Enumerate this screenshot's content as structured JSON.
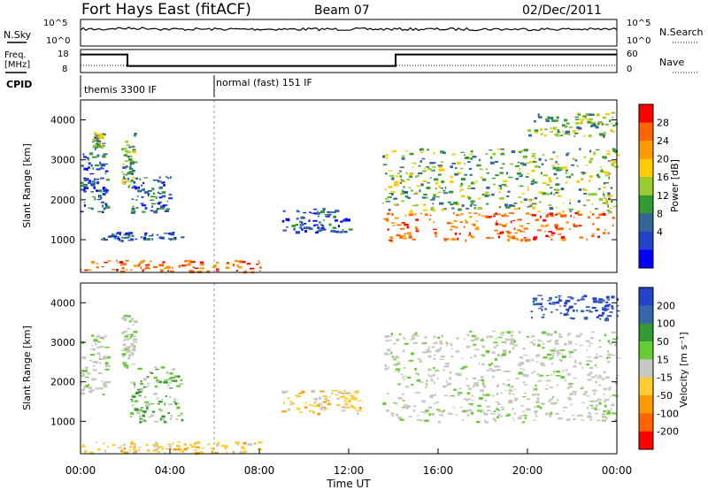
{
  "header": {
    "station": "Fort Hays East (fitACF)",
    "beam": "Beam 07",
    "date": "02/Dec/2011"
  },
  "noise_panel": {
    "left_label": "N.Sky",
    "right_label": "N.Search",
    "left_ticks": [
      "10^5",
      "10^0"
    ],
    "right_ticks": [
      "10^5",
      "10^0"
    ]
  },
  "freq_panel": {
    "left_label_line1": "Freq.",
    "left_label_line2": "[MHz]",
    "left_ticks": [
      "18",
      "8"
    ],
    "right_label": "Nave",
    "right_ticks": [
      "60",
      "0"
    ],
    "freq_steps": [
      {
        "start_hour": 0,
        "end_hour": 2.1,
        "mhz": 17
      },
      {
        "start_hour": 2.1,
        "end_hour": 14.1,
        "mhz": 10
      },
      {
        "start_hour": 14.1,
        "end_hour": 24,
        "mhz": 17
      }
    ]
  },
  "cpid_panel": {
    "label": "CPID",
    "segments": [
      {
        "start_hour": 0,
        "text": "themis 3300 IF"
      },
      {
        "start_hour": 6,
        "text": "normal (fast) 151 IF"
      }
    ]
  },
  "chart_data": [
    {
      "type": "heatmap",
      "name": "power",
      "ylabel": "Slant Range [km]",
      "ylim": [
        180,
        4500
      ],
      "yticks": [
        1000,
        2000,
        3000,
        4000
      ],
      "xlim": [
        0,
        24
      ],
      "colorbar": {
        "label": "Power [dB]",
        "ticks": [
          "28",
          "24",
          "20",
          "16",
          "12",
          "8",
          "4"
        ],
        "colors": [
          "#ff0000",
          "#ff6600",
          "#ff9900",
          "#ffcc00",
          "#99cc33",
          "#339933",
          "#336699",
          "#2244cc",
          "#0000ff"
        ]
      },
      "regions": [
        {
          "t0": 0.0,
          "t1": 1.2,
          "r0": 1700,
          "r1": 3200,
          "level": "low"
        },
        {
          "t0": 0.5,
          "t1": 1.0,
          "r0": 3300,
          "r1": 3700,
          "level": "mid"
        },
        {
          "t0": 1.8,
          "t1": 2.4,
          "r0": 2300,
          "r1": 3700,
          "level": "mid"
        },
        {
          "t0": 0.8,
          "t1": 4.5,
          "r0": 1000,
          "r1": 1200,
          "level": "low"
        },
        {
          "t0": 2.2,
          "t1": 4.0,
          "r0": 1700,
          "r1": 2600,
          "level": "low"
        },
        {
          "t0": 0.0,
          "t1": 8.0,
          "r0": 200,
          "r1": 500,
          "level": "high"
        },
        {
          "t0": 9.0,
          "t1": 12.0,
          "r0": 1200,
          "r1": 1800,
          "level": "low"
        },
        {
          "t0": 13.5,
          "t1": 24.0,
          "r0": 1000,
          "r1": 1700,
          "level": "high"
        },
        {
          "t0": 13.5,
          "t1": 24.0,
          "r0": 1700,
          "r1": 3300,
          "level": "mid"
        },
        {
          "t0": 20.0,
          "t1": 24.0,
          "r0": 3600,
          "r1": 4200,
          "level": "mid"
        }
      ]
    },
    {
      "type": "heatmap",
      "name": "velocity",
      "ylabel": "Slant Range [km]",
      "ylim": [
        180,
        4500
      ],
      "yticks": [
        1000,
        2000,
        3000,
        4000
      ],
      "xlim": [
        0,
        24
      ],
      "xlabel": "Time UT",
      "xticks": [
        "00:00",
        "04:00",
        "08:00",
        "12:00",
        "16:00",
        "20:00",
        "00:00"
      ],
      "colorbar": {
        "label": "Velocity [m s⁻¹]",
        "ticks": [
          "200",
          "100",
          "50",
          "15",
          "-15",
          "-50",
          "-100",
          "-200"
        ],
        "colors": [
          "#2244cc",
          "#3366aa",
          "#339933",
          "#66cc33",
          "#c8c8c0",
          "#ffcc33",
          "#ff9900",
          "#ff6600",
          "#ff0000"
        ]
      },
      "regions": [
        {
          "t0": 0.0,
          "t1": 1.2,
          "r0": 1700,
          "r1": 3200,
          "level": "gray"
        },
        {
          "t0": 1.8,
          "t1": 2.4,
          "r0": 2300,
          "r1": 3700,
          "level": "gray"
        },
        {
          "t0": 2.2,
          "t1": 4.5,
          "r0": 1000,
          "r1": 2400,
          "level": "green"
        },
        {
          "t0": 0.0,
          "t1": 8.0,
          "r0": 200,
          "r1": 500,
          "level": "orange"
        },
        {
          "t0": 9.0,
          "t1": 12.5,
          "r0": 1200,
          "r1": 1800,
          "level": "orange"
        },
        {
          "t0": 13.5,
          "t1": 24.0,
          "r0": 1000,
          "r1": 3300,
          "level": "gray"
        },
        {
          "t0": 20.0,
          "t1": 24.0,
          "r0": 3600,
          "r1": 4200,
          "level": "blue"
        }
      ]
    }
  ]
}
